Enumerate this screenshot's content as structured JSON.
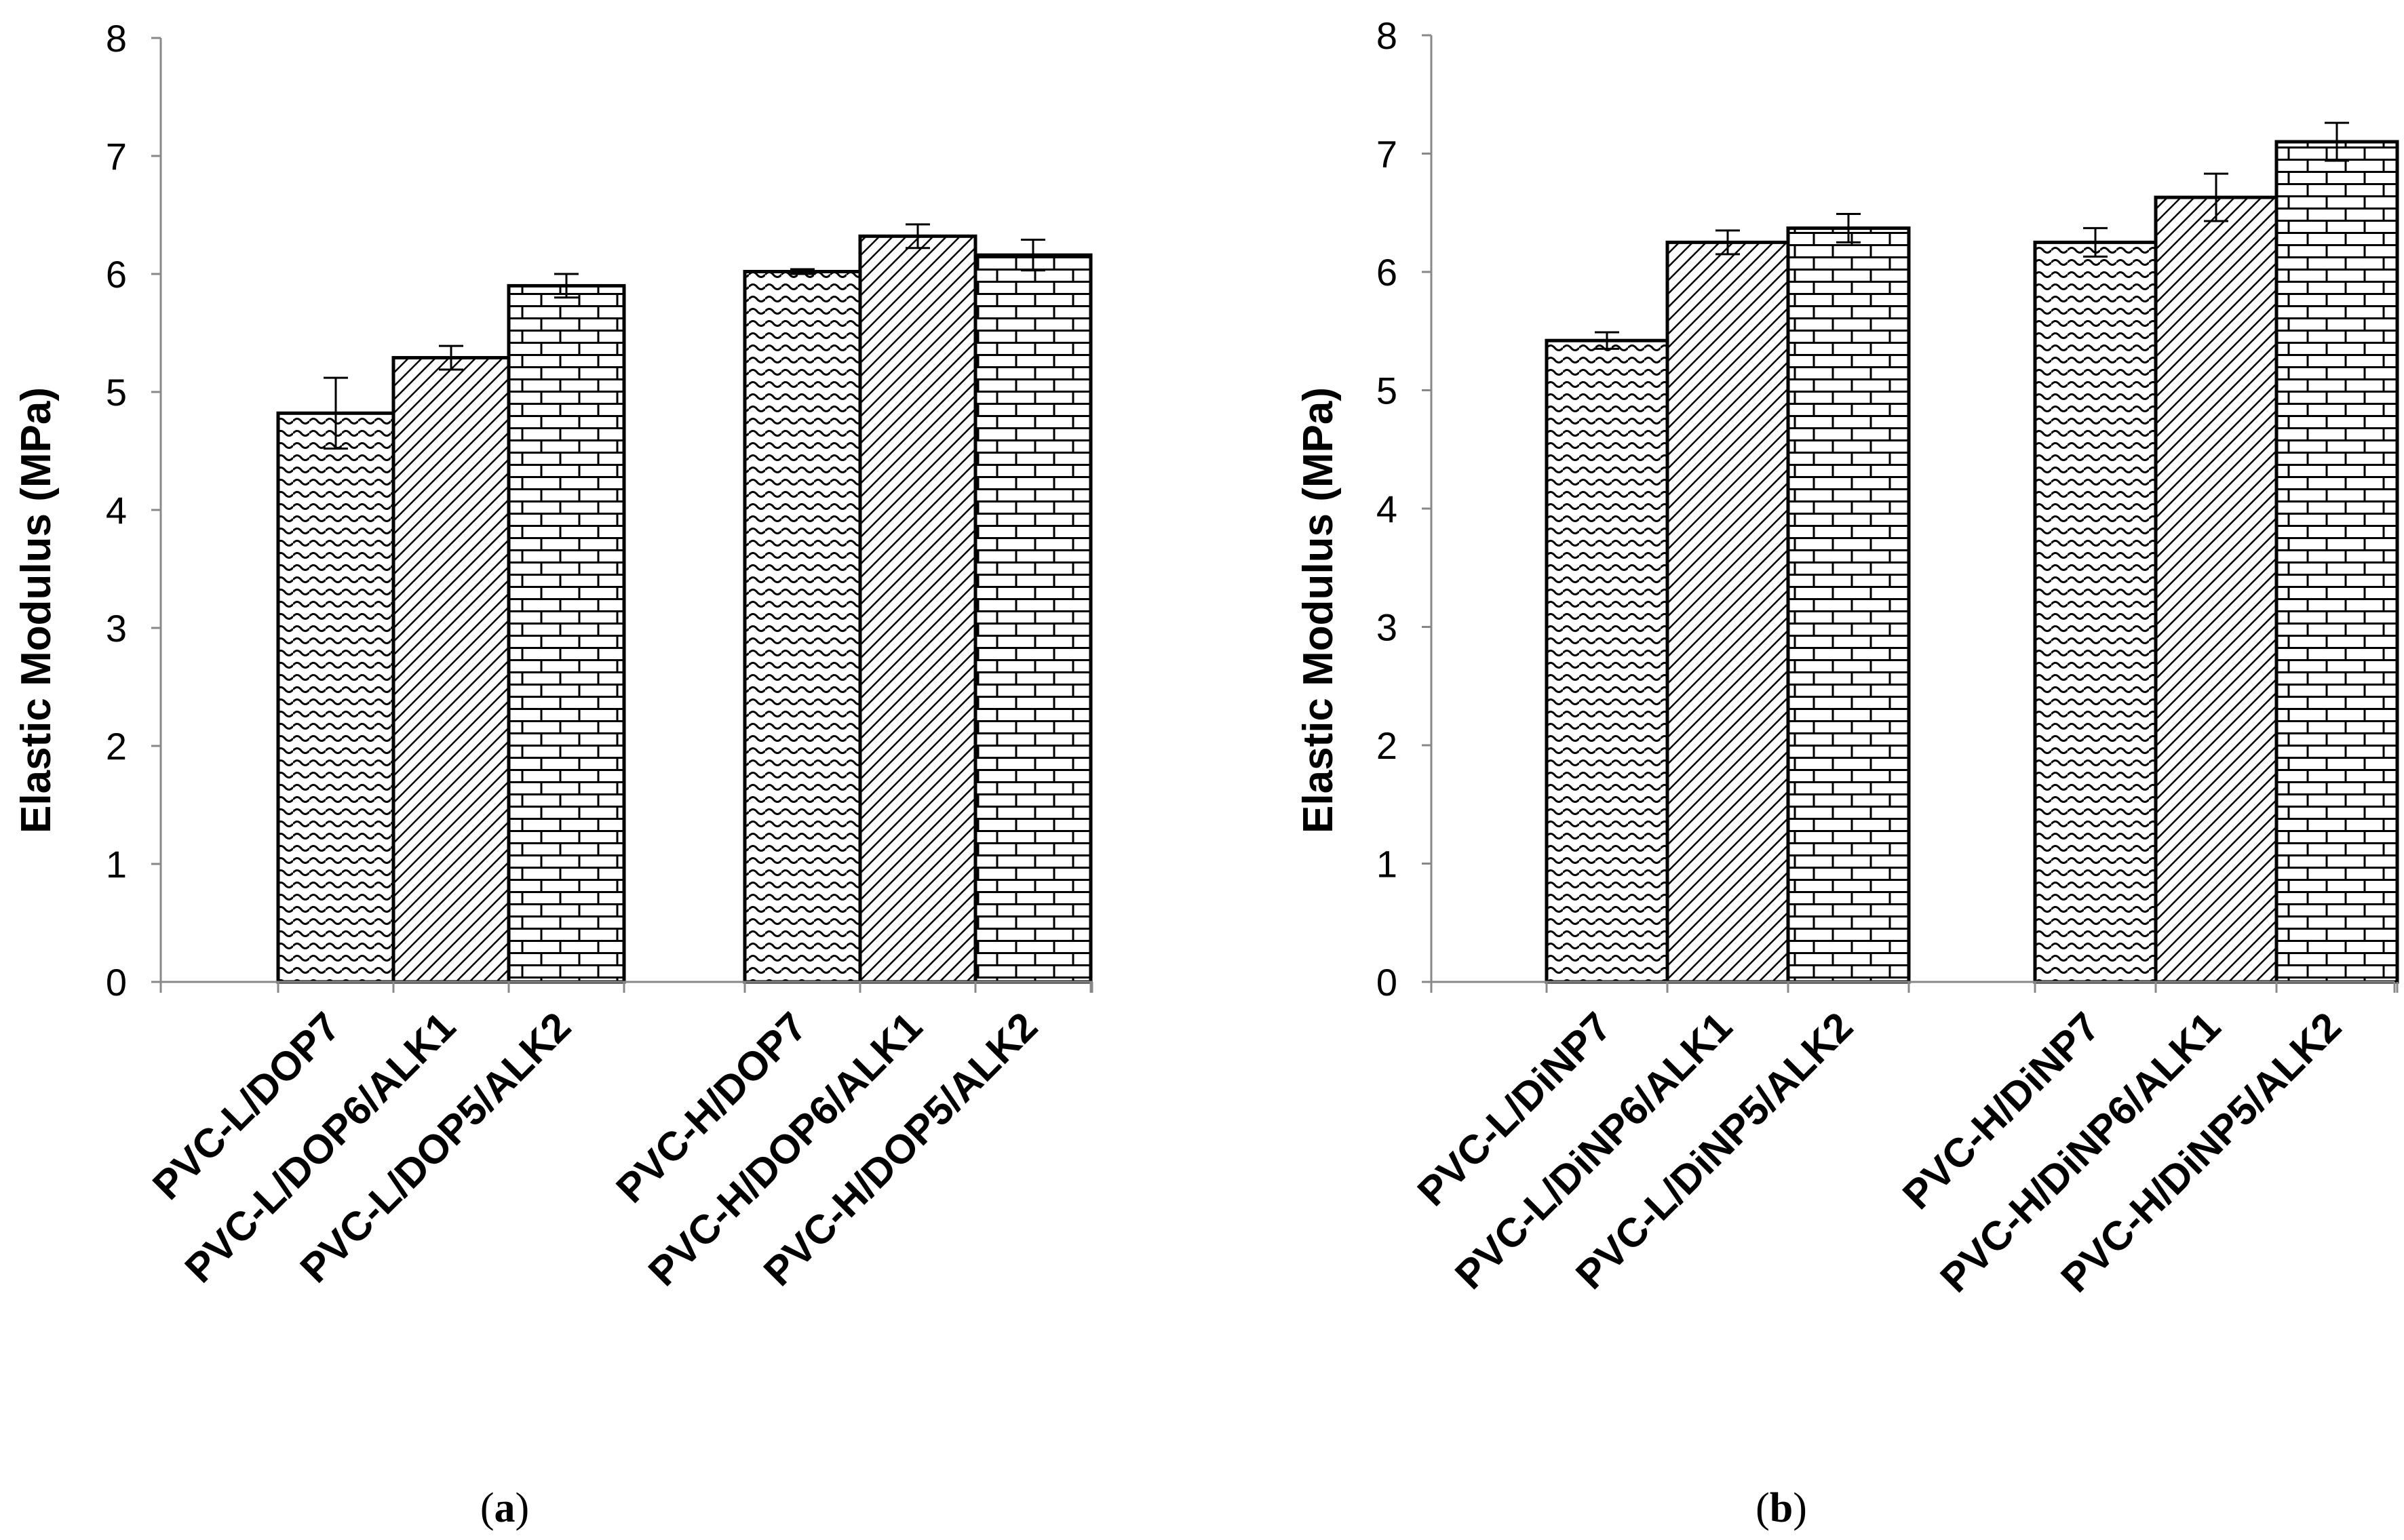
{
  "chart_data": [
    {
      "type": "bar",
      "panel": "a",
      "panel_label_open": "(",
      "panel_label_letter": "a",
      "panel_label_close": ")",
      "ylabel": "Elastic Modulus (MPa)",
      "xlabel": "",
      "ylim": [
        0,
        8
      ],
      "yticks": [
        0,
        1,
        2,
        3,
        4,
        5,
        6,
        7,
        8
      ],
      "grid": false,
      "groups": [
        {
          "categories": [
            "PVC-L/DOP7",
            "PVC-L/DOP6/ALK1",
            "PVC-L/DOP5/ALK2"
          ],
          "values": [
            4.82,
            5.29,
            5.9
          ],
          "errors": [
            0.3,
            0.1,
            0.1
          ]
        },
        {
          "categories": [
            "PVC-H/DOP7",
            "PVC-H/DOP6/ALK1",
            "PVC-H/DOP5/ALK2"
          ],
          "values": [
            6.02,
            6.32,
            6.16
          ],
          "errors": [
            0.02,
            0.1,
            0.13
          ]
        }
      ],
      "patterns": [
        "wave",
        "diagonal",
        "brick"
      ]
    },
    {
      "type": "bar",
      "panel": "b",
      "panel_label_open": "(",
      "panel_label_letter": "b",
      "panel_label_close": ")",
      "ylabel": "Elastic Modulus (MPa)",
      "xlabel": "",
      "ylim": [
        0,
        8
      ],
      "yticks": [
        0,
        1,
        2,
        3,
        4,
        5,
        6,
        7,
        8
      ],
      "grid": false,
      "groups": [
        {
          "categories": [
            "PVC-L/DiNP7",
            "PVC-L/DiNP6/ALK1",
            "PVC-L/DiNP5/ALK2"
          ],
          "values": [
            5.42,
            6.25,
            6.37
          ],
          "errors": [
            0.07,
            0.1,
            0.12
          ]
        },
        {
          "categories": [
            "PVC-H/DiNP7",
            "PVC-H/DiNP6/ALK1",
            "PVC-H/DiNP5/ALK2"
          ],
          "values": [
            6.25,
            6.63,
            7.1
          ],
          "errors": [
            0.12,
            0.2,
            0.16
          ]
        }
      ],
      "patterns": [
        "wave",
        "diagonal",
        "brick"
      ]
    }
  ]
}
